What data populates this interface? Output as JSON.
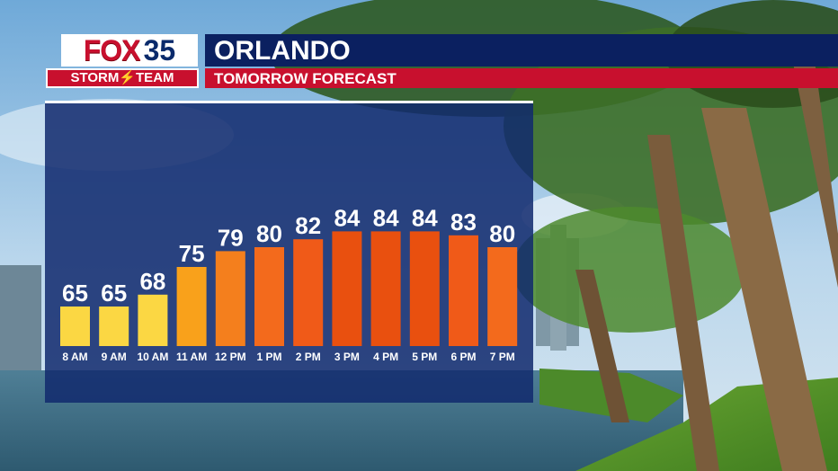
{
  "brand": {
    "logo_fox": "FOX",
    "logo_num": "35",
    "logo_bottom": "STORM⚡TEAM"
  },
  "header": {
    "title": "ORLANDO",
    "subtitle": "TOMORROW FORECAST"
  },
  "colors": {
    "navy": "#0b2060",
    "red": "#c8102e",
    "yellow": "#fbd743",
    "orange_light": "#f9a11b",
    "orange_mid": "#f26a1b",
    "orange_dark": "#e34a0c"
  },
  "chart_data": {
    "type": "bar",
    "categories": [
      "8 AM",
      "9 AM",
      "10 AM",
      "11 AM",
      "12 PM",
      "1 PM",
      "2 PM",
      "3 PM",
      "4 PM",
      "5 PM",
      "6 PM",
      "7 PM"
    ],
    "values": [
      65,
      65,
      68,
      75,
      79,
      80,
      82,
      84,
      84,
      84,
      83,
      80
    ],
    "bar_colors": [
      "#fbd743",
      "#fbd743",
      "#fbd743",
      "#f9a11b",
      "#f47f1d",
      "#f36a1c",
      "#f05a18",
      "#e9500f",
      "#e9500f",
      "#e9500f",
      "#f05a18",
      "#f36a1c"
    ],
    "title": "",
    "xlabel": "",
    "ylabel": "",
    "ylim": [
      50,
      90
    ],
    "grid": false,
    "legend": "none"
  }
}
